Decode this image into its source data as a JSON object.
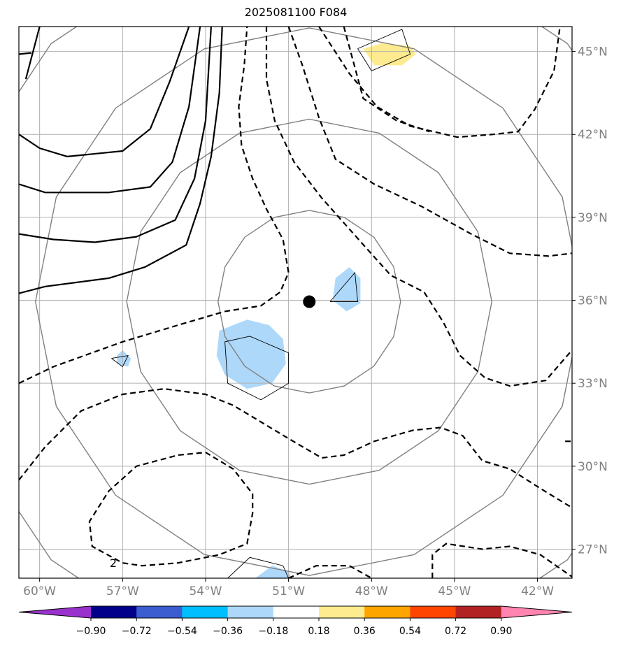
{
  "chart_data": {
    "type": "map",
    "title": "2025081100 F084",
    "projection": "plate-carree",
    "lon_range": [
      -60.75,
      -40.75
    ],
    "lat_range": [
      25.95,
      45.9
    ],
    "center": {
      "lon": -50.25,
      "lat": 35.95
    },
    "lon_ticks": [
      -60,
      -57,
      -54,
      -51,
      -48,
      -45,
      -42
    ],
    "lon_tick_labels": [
      "60°W",
      "57°W",
      "54°W",
      "51°W",
      "48°W",
      "45°W",
      "42°W"
    ],
    "lat_ticks": [
      27,
      30,
      33,
      36,
      39,
      42,
      45
    ],
    "lat_tick_labels": [
      "27°N",
      "30°N",
      "33°N",
      "36°N",
      "39°N",
      "42°N",
      "45°N"
    ],
    "grid": true,
    "range_rings": {
      "color": "#808080",
      "radii_deg": [
        3.3,
        6.6,
        9.9,
        13.2
      ]
    },
    "contour_label": "2",
    "positive_contours": [
      [
        [
          -60.5,
          44.0
        ],
        [
          -60.0,
          45.9
        ]
      ],
      [
        [
          -60.75,
          44.9
        ],
        [
          -60.3,
          44.95
        ]
      ],
      [
        [
          -60.75,
          42.0
        ],
        [
          -60.0,
          41.5
        ],
        [
          -59.0,
          41.2
        ],
        [
          -57.0,
          41.4
        ],
        [
          -56.0,
          42.2
        ],
        [
          -55.3,
          43.9
        ],
        [
          -54.6,
          45.9
        ]
      ],
      [
        [
          -60.75,
          40.2
        ],
        [
          -59.8,
          39.9
        ],
        [
          -57.5,
          39.9
        ],
        [
          -56.0,
          40.1
        ],
        [
          -55.2,
          41.0
        ],
        [
          -54.6,
          43.0
        ],
        [
          -54.2,
          45.9
        ]
      ],
      [
        [
          -60.75,
          38.4
        ],
        [
          -59.5,
          38.2
        ],
        [
          -58.0,
          38.1
        ],
        [
          -56.5,
          38.3
        ],
        [
          -55.1,
          38.9
        ],
        [
          -54.4,
          40.4
        ],
        [
          -54.0,
          42.5
        ],
        [
          -53.8,
          45.9
        ]
      ],
      [
        [
          -60.75,
          36.25
        ],
        [
          -59.8,
          36.5
        ],
        [
          -57.5,
          36.8
        ],
        [
          -56.2,
          37.2
        ],
        [
          -54.7,
          38.0
        ],
        [
          -54.2,
          39.5
        ],
        [
          -53.8,
          41.2
        ],
        [
          -53.5,
          43.5
        ],
        [
          -53.4,
          45.9
        ]
      ]
    ],
    "negative_contours": [
      [
        [
          -60.75,
          33.0
        ],
        [
          -59.5,
          33.6
        ],
        [
          -57.0,
          34.5
        ],
        [
          -55.0,
          35.1
        ],
        [
          -53.3,
          35.6
        ],
        [
          -52.0,
          35.8
        ],
        [
          -51.3,
          36.3
        ],
        [
          -51.0,
          37.0
        ],
        [
          -51.2,
          38.2
        ],
        [
          -51.8,
          39.3
        ],
        [
          -52.3,
          40.4
        ],
        [
          -52.7,
          41.6
        ],
        [
          -52.8,
          43.0
        ],
        [
          -52.6,
          44.5
        ],
        [
          -52.5,
          45.9
        ]
      ],
      [
        [
          -51.8,
          45.9
        ],
        [
          -51.8,
          44.0
        ],
        [
          -51.5,
          42.5
        ],
        [
          -50.8,
          41.0
        ],
        [
          -49.8,
          39.7
        ],
        [
          -49.0,
          38.8
        ],
        [
          -48.2,
          37.9
        ],
        [
          -47.3,
          36.9
        ],
        [
          -46.1,
          36.3
        ],
        [
          -45.4,
          35.2
        ],
        [
          -44.8,
          34.0
        ],
        [
          -43.9,
          33.2
        ],
        [
          -43.0,
          32.9
        ],
        [
          -41.7,
          33.1
        ],
        [
          -40.75,
          34.2
        ]
      ],
      [
        [
          -51.0,
          45.9
        ],
        [
          -50.5,
          44.5
        ],
        [
          -49.9,
          42.6
        ],
        [
          -49.3,
          41.1
        ],
        [
          -47.9,
          40.2
        ],
        [
          -46.2,
          39.4
        ],
        [
          -44.4,
          38.4
        ],
        [
          -43.0,
          37.7
        ],
        [
          -41.6,
          37.6
        ],
        [
          -40.75,
          37.7
        ]
      ],
      [
        [
          -49.9,
          45.9
        ],
        [
          -48.8,
          44.2
        ],
        [
          -47.8,
          43.0
        ],
        [
          -46.6,
          42.3
        ],
        [
          -44.9,
          41.9
        ],
        [
          -43.6,
          42.0
        ],
        [
          -42.7,
          42.1
        ],
        [
          -42.1,
          42.9
        ],
        [
          -41.4,
          44.3
        ],
        [
          -41.2,
          45.8
        ]
      ],
      [
        [
          -49.0,
          45.9
        ],
        [
          -48.3,
          43.3
        ],
        [
          -47.1,
          42.5
        ],
        [
          -45.9,
          42.1
        ]
      ],
      [
        [
          -60.75,
          29.5
        ],
        [
          -59.8,
          30.7
        ],
        [
          -58.5,
          32.0
        ],
        [
          -57.0,
          32.6
        ],
        [
          -55.5,
          32.8
        ],
        [
          -54.0,
          32.6
        ],
        [
          -53.0,
          32.2
        ],
        [
          -52.0,
          31.6
        ],
        [
          -51.0,
          31.0
        ],
        [
          -49.8,
          30.3
        ],
        [
          -49.0,
          30.4
        ],
        [
          -47.9,
          30.9
        ],
        [
          -46.5,
          31.3
        ],
        [
          -45.5,
          31.4
        ],
        [
          -44.7,
          31.1
        ],
        [
          -44.0,
          30.2
        ],
        [
          -43.0,
          29.9
        ],
        [
          -41.9,
          29.2
        ],
        [
          -40.75,
          28.5
        ]
      ],
      [
        [
          -57.0,
          26.5
        ],
        [
          -56.3,
          26.4
        ],
        [
          -55.0,
          26.5
        ],
        [
          -53.5,
          26.8
        ],
        [
          -52.5,
          27.2
        ],
        [
          -52.3,
          28.3
        ],
        [
          -52.3,
          29.0
        ],
        [
          -53.0,
          29.9
        ],
        [
          -54.0,
          30.5
        ],
        [
          -55.0,
          30.4
        ],
        [
          -56.5,
          30.0
        ],
        [
          -57.5,
          29.1
        ],
        [
          -58.2,
          28.0
        ],
        [
          -58.1,
          27.1
        ],
        [
          -57.0,
          26.5
        ]
      ],
      [
        [
          -45.8,
          25.95
        ],
        [
          -45.8,
          26.8
        ],
        [
          -45.3,
          27.2
        ],
        [
          -44.0,
          27.0
        ],
        [
          -43.0,
          27.1
        ],
        [
          -41.9,
          26.8
        ],
        [
          -40.75,
          26.0
        ]
      ],
      [
        [
          -51.0,
          25.95
        ],
        [
          -50.0,
          26.4
        ],
        [
          -48.8,
          26.4
        ],
        [
          -48.0,
          25.95
        ]
      ],
      [
        [
          -41.0,
          30.9
        ],
        [
          -40.75,
          30.9
        ]
      ]
    ],
    "thin_polygons": [
      [
        [
          -52.4,
          34.7
        ],
        [
          -51.0,
          34.1
        ],
        [
          -51.0,
          33.0
        ],
        [
          -52.0,
          32.4
        ],
        [
          -53.2,
          33.0
        ],
        [
          -53.3,
          34.5
        ],
        [
          -52.4,
          34.7
        ]
      ],
      [
        [
          -49.5,
          35.95
        ],
        [
          -48.6,
          37.0
        ],
        [
          -48.5,
          35.95
        ],
        [
          -49.5,
          35.95
        ]
      ],
      [
        [
          -57.4,
          33.9
        ],
        [
          -56.8,
          34.0
        ],
        [
          -57.0,
          33.6
        ],
        [
          -57.4,
          33.9
        ]
      ],
      [
        [
          -48.5,
          45.1
        ],
        [
          -46.9,
          45.8
        ],
        [
          -46.6,
          44.9
        ],
        [
          -48.0,
          44.3
        ],
        [
          -48.5,
          45.1
        ]
      ],
      [
        [
          -53.2,
          25.95
        ],
        [
          -52.4,
          26.7
        ],
        [
          -51.2,
          26.4
        ],
        [
          -51.0,
          25.95
        ]
      ]
    ],
    "filled_regions": [
      {
        "value": -0.27,
        "color": "#add8fa",
        "points": [
          [
            -52.5,
            35.3
          ],
          [
            -51.7,
            35.1
          ],
          [
            -51.2,
            34.6
          ],
          [
            -51.1,
            33.7
          ],
          [
            -51.6,
            33.0
          ],
          [
            -52.5,
            32.8
          ],
          [
            -53.3,
            33.3
          ],
          [
            -53.6,
            34.0
          ],
          [
            -53.5,
            34.9
          ],
          [
            -52.5,
            35.3
          ]
        ]
      },
      {
        "value": -0.27,
        "color": "#add8fa",
        "points": [
          [
            -48.8,
            37.2
          ],
          [
            -48.4,
            36.8
          ],
          [
            -48.4,
            35.9
          ],
          [
            -48.9,
            35.6
          ],
          [
            -49.4,
            36.0
          ],
          [
            -49.3,
            36.8
          ],
          [
            -48.8,
            37.2
          ]
        ]
      },
      {
        "value": -0.27,
        "color": "#add8fa",
        "points": [
          [
            -57.0,
            34.2
          ],
          [
            -56.7,
            33.9
          ],
          [
            -56.8,
            33.6
          ],
          [
            -57.2,
            33.7
          ],
          [
            -57.2,
            34.0
          ],
          [
            -57.0,
            34.2
          ]
        ]
      },
      {
        "value": -0.27,
        "color": "#add8fa",
        "points": [
          [
            -52.2,
            25.95
          ],
          [
            -51.6,
            26.4
          ],
          [
            -51.0,
            26.2
          ],
          [
            -50.9,
            25.95
          ]
        ]
      },
      {
        "value": 0.27,
        "color": "#ffeb8f",
        "points": [
          [
            -48.3,
            45.1
          ],
          [
            -47.6,
            45.3
          ],
          [
            -46.6,
            45.2
          ],
          [
            -46.4,
            44.9
          ],
          [
            -46.9,
            44.5
          ],
          [
            -47.9,
            44.5
          ],
          [
            -48.3,
            45.1
          ]
        ]
      }
    ],
    "marker": {
      "lon": -50.25,
      "lat": 35.95,
      "color": "#000000"
    },
    "colorbar": {
      "orientation": "horizontal",
      "extend": "both",
      "tick_labels": [
        "−0.90",
        "−0.72",
        "−0.54",
        "−0.36",
        "−0.18",
        "0.18",
        "0.36",
        "0.54",
        "0.72",
        "0.90"
      ],
      "colors": [
        "#9932cc",
        "#00008b",
        "#3c5dcf",
        "#00bfff",
        "#add8fa",
        "#ffffff",
        "#ffeb8f",
        "#ffa500",
        "#ff4500",
        "#b22222",
        "#ff85b0"
      ]
    }
  }
}
